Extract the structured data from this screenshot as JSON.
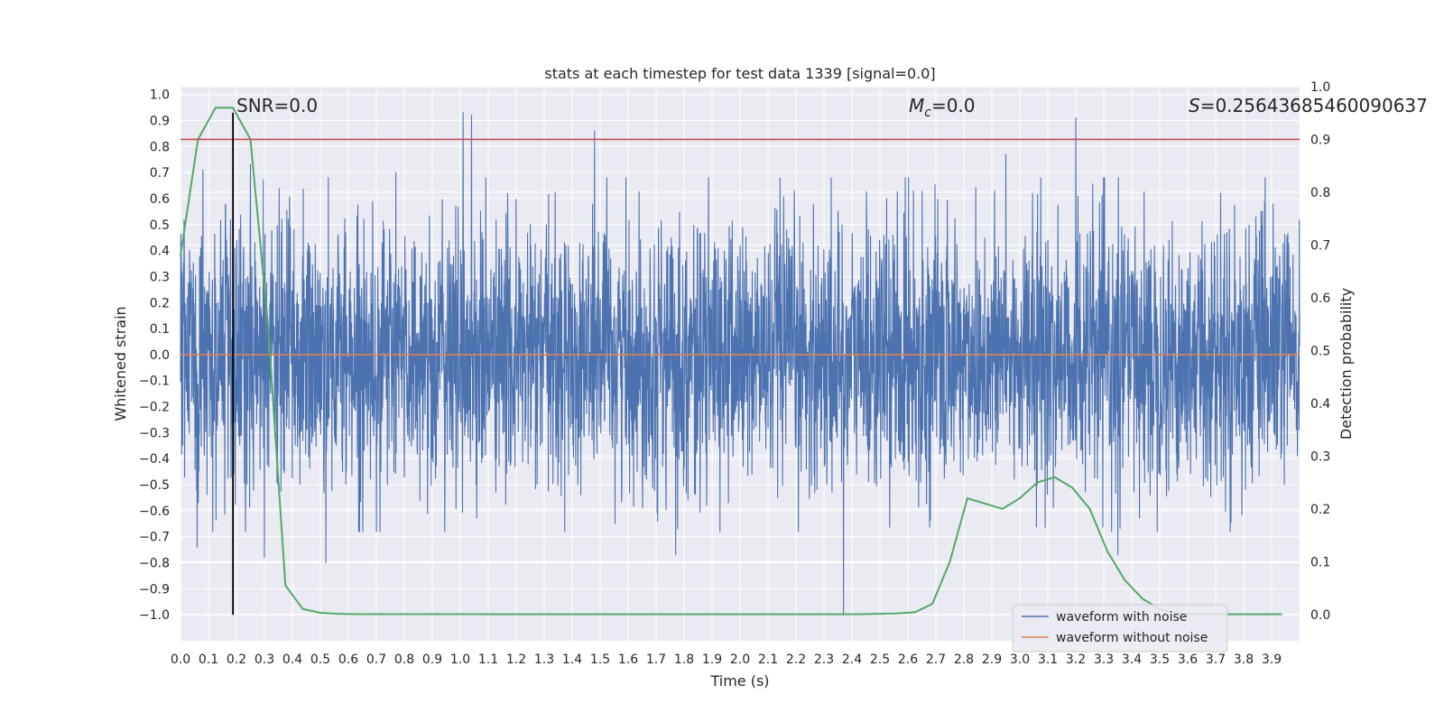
{
  "chart_data": {
    "type": "line",
    "title": "stats at each timestep for test data 1339 [signal=0.0]",
    "xlabel": "Time (s)",
    "ylabel_left": "Whitened strain",
    "ylabel_right": "Detection probability",
    "xlim": [
      0.0,
      4.0
    ],
    "ylim_left": [
      -1.1,
      1.03
    ],
    "ylim_right": [
      -0.05,
      1.0
    ],
    "grid": true,
    "x_ticks": [
      "0.0",
      "0.1",
      "0.2",
      "0.3",
      "0.4",
      "0.5",
      "0.6",
      "0.7",
      "0.8",
      "0.9",
      "1.0",
      "1.1",
      "1.2",
      "1.3",
      "1.4",
      "1.5",
      "1.6",
      "1.7",
      "1.8",
      "1.9",
      "2.0",
      "2.1",
      "2.2",
      "2.3",
      "2.4",
      "2.5",
      "2.6",
      "2.7",
      "2.8",
      "2.9",
      "3.0",
      "3.1",
      "3.2",
      "3.3",
      "3.4",
      "3.5",
      "3.6",
      "3.7",
      "3.8",
      "3.9"
    ],
    "y_ticks_left": [
      "−1.0",
      "−0.9",
      "−0.8",
      "−0.7",
      "−0.6",
      "−0.5",
      "−0.4",
      "−0.3",
      "−0.2",
      "−0.1",
      "0.0",
      "0.1",
      "0.2",
      "0.3",
      "0.4",
      "0.5",
      "0.6",
      "0.7",
      "0.8",
      "0.9",
      "1.0"
    ],
    "y_ticks_right": [
      "0.0",
      "0.1",
      "0.2",
      "0.3",
      "0.4",
      "0.5",
      "0.6",
      "0.7",
      "0.8",
      "0.9",
      "1.0"
    ],
    "series": [
      {
        "name": "waveform with noise",
        "axis": "left",
        "color": "#4c72b0",
        "note_samples": 4096,
        "envelope_sigma": 0.25,
        "spikes": [
          {
            "x": 0.06,
            "y": -0.74
          },
          {
            "x": 0.08,
            "y": 0.71
          },
          {
            "x": 0.25,
            "y": 0.73
          },
          {
            "x": 0.3,
            "y": -0.78
          },
          {
            "x": 0.52,
            "y": -0.8
          },
          {
            "x": 0.77,
            "y": 0.7
          },
          {
            "x": 1.01,
            "y": 0.93
          },
          {
            "x": 1.04,
            "y": 0.92
          },
          {
            "x": 1.48,
            "y": 0.86
          },
          {
            "x": 1.77,
            "y": -0.77
          },
          {
            "x": 2.37,
            "y": -1.0
          },
          {
            "x": 2.95,
            "y": 0.77
          },
          {
            "x": 3.2,
            "y": 0.91
          },
          {
            "x": 3.35,
            "y": -0.77
          }
        ]
      },
      {
        "name": "waveform without noise",
        "axis": "left",
        "color": "#dd8452",
        "x": [
          0.0,
          4.0
        ],
        "y": [
          0.0,
          0.0
        ]
      },
      {
        "name": "Detection probability",
        "axis": "right",
        "color": "#55a868",
        "x": [
          0.0,
          0.0625,
          0.125,
          0.1875,
          0.25,
          0.3125,
          0.375,
          0.4375,
          0.5,
          0.5625,
          0.625,
          0.6875,
          0.75,
          0.8125,
          0.875,
          0.9375,
          1.0,
          1.0625,
          1.125,
          1.1875,
          1.25,
          1.3125,
          1.375,
          1.4375,
          1.5,
          1.5625,
          1.625,
          1.6875,
          1.75,
          1.8125,
          1.875,
          1.9375,
          2.0,
          2.0625,
          2.125,
          2.1875,
          2.25,
          2.3125,
          2.375,
          2.4375,
          2.5,
          2.5625,
          2.625,
          2.6875,
          2.75,
          2.8125,
          2.875,
          2.9375,
          3.0,
          3.0625,
          3.125,
          3.1875,
          3.25,
          3.3125,
          3.375,
          3.4375,
          3.5,
          3.5625,
          3.625,
          3.6875,
          3.75,
          3.8125,
          3.875,
          3.9375
        ],
        "y": [
          0.68,
          0.9,
          0.96,
          0.96,
          0.9,
          0.55,
          0.055,
          0.01,
          0.003,
          0.001,
          0.0005,
          0.0005,
          0.0005,
          0.0005,
          0.0005,
          0.0005,
          0.0005,
          0.0005,
          0.0003,
          0.0003,
          0.0003,
          0.0003,
          0.0003,
          0.0003,
          0.0003,
          0.0003,
          0.0003,
          0.0003,
          0.0003,
          0.0003,
          0.0003,
          0.0003,
          0.0003,
          0.0003,
          0.0003,
          0.0003,
          0.0003,
          0.0003,
          0.0003,
          0.0005,
          0.001,
          0.002,
          0.004,
          0.02,
          0.1,
          0.22,
          0.21,
          0.2,
          0.22,
          0.25,
          0.26,
          0.24,
          0.2,
          0.12,
          0.065,
          0.03,
          0.01,
          0.002,
          0.0005,
          0.0003,
          0.0003,
          0.0003,
          0.0003,
          0.0003
        ]
      }
    ],
    "hlines": [
      {
        "y": 0.9,
        "axis": "right",
        "color": "#c44e52"
      }
    ],
    "vlines": [
      {
        "x": 0.1875,
        "y_from": -1.0,
        "y_to": 0.93,
        "color": "#000000"
      }
    ],
    "annotations": [
      {
        "id": "snr",
        "text": "SNR=0.0"
      },
      {
        "id": "mc",
        "symbol": "M",
        "subscript": "c",
        "value": "=0.0"
      },
      {
        "id": "score",
        "symbol": "S",
        "value": "=0.25643685460090637"
      }
    ],
    "legend": {
      "placement": "lower right",
      "entries": [
        "waveform with noise",
        "waveform without noise"
      ]
    }
  }
}
